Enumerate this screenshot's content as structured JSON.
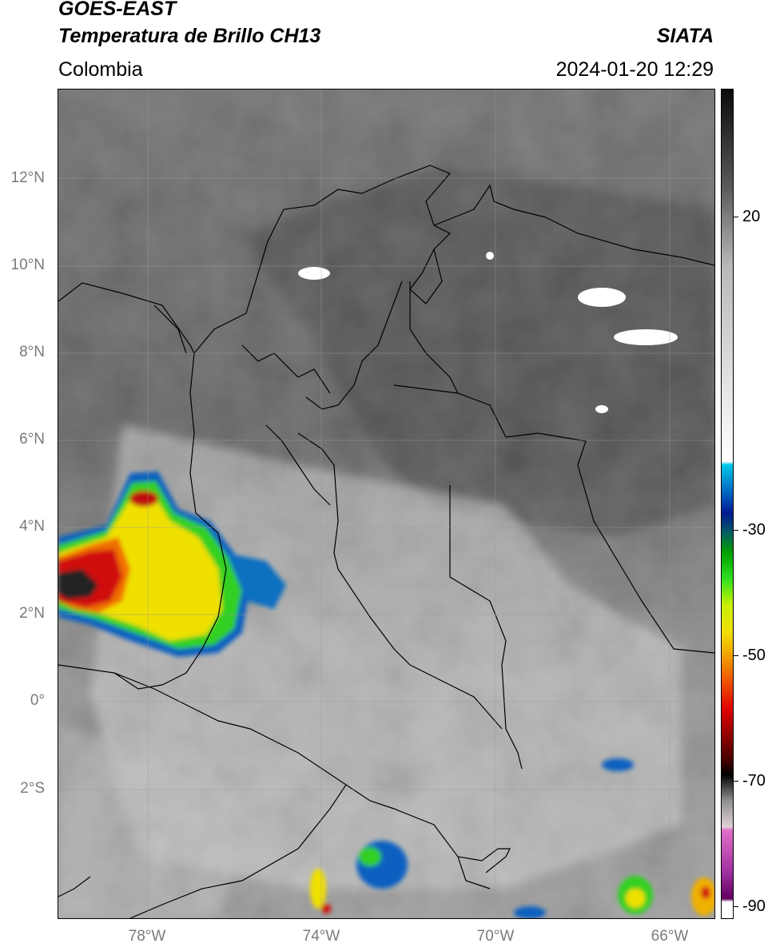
{
  "header": {
    "satellite": "GOES-EAST",
    "product": "Temperatura de Brillo CH13",
    "agency": "SIATA",
    "region": "Colombia",
    "datetime": "2024-01-20 12:29"
  },
  "map": {
    "lat_ticks": [
      "12°N",
      "10°N",
      "8°N",
      "6°N",
      "4°N",
      "2°N",
      "0°",
      "2°S"
    ],
    "lon_ticks": [
      "78°W",
      "74°W",
      "70°W",
      "66°W"
    ],
    "lat_range": [
      -5,
      14
    ],
    "lon_range": [
      -80,
      -65
    ],
    "background_color": "#7d7d7d",
    "boundary_color": "#000000"
  },
  "colorbar": {
    "labels": [
      "20",
      "-30",
      "-50",
      "-70",
      "-90"
    ],
    "range": [
      -92,
      35
    ],
    "stops": [
      {
        "t": 35,
        "color": "#0a0a0a"
      },
      {
        "t": 20,
        "color": "#5a5a5a"
      },
      {
        "t": 8,
        "color": "#b8b8b8"
      },
      {
        "t": -22,
        "color": "#ffffff"
      },
      {
        "t": -22.5,
        "color": "#00c8e8"
      },
      {
        "t": -27,
        "color": "#0060c0"
      },
      {
        "t": -30,
        "color": "#001890"
      },
      {
        "t": -33,
        "color": "#006060"
      },
      {
        "t": -36,
        "color": "#00a000"
      },
      {
        "t": -40,
        "color": "#30e020"
      },
      {
        "t": -44,
        "color": "#c8f000"
      },
      {
        "t": -48,
        "color": "#f0e000"
      },
      {
        "t": -51,
        "color": "#f0b000"
      },
      {
        "t": -55,
        "color": "#f06000"
      },
      {
        "t": -60,
        "color": "#e00000"
      },
      {
        "t": -64,
        "color": "#900000"
      },
      {
        "t": -68,
        "color": "#400000"
      },
      {
        "t": -70,
        "color": "#000000"
      },
      {
        "t": -74,
        "color": "#909090"
      },
      {
        "t": -78,
        "color": "#e0d0d8"
      },
      {
        "t": -78.5,
        "color": "#e070c8"
      },
      {
        "t": -85,
        "color": "#a030a0"
      },
      {
        "t": -89,
        "color": "#600060"
      },
      {
        "t": -89.5,
        "color": "#ffffff"
      }
    ]
  }
}
